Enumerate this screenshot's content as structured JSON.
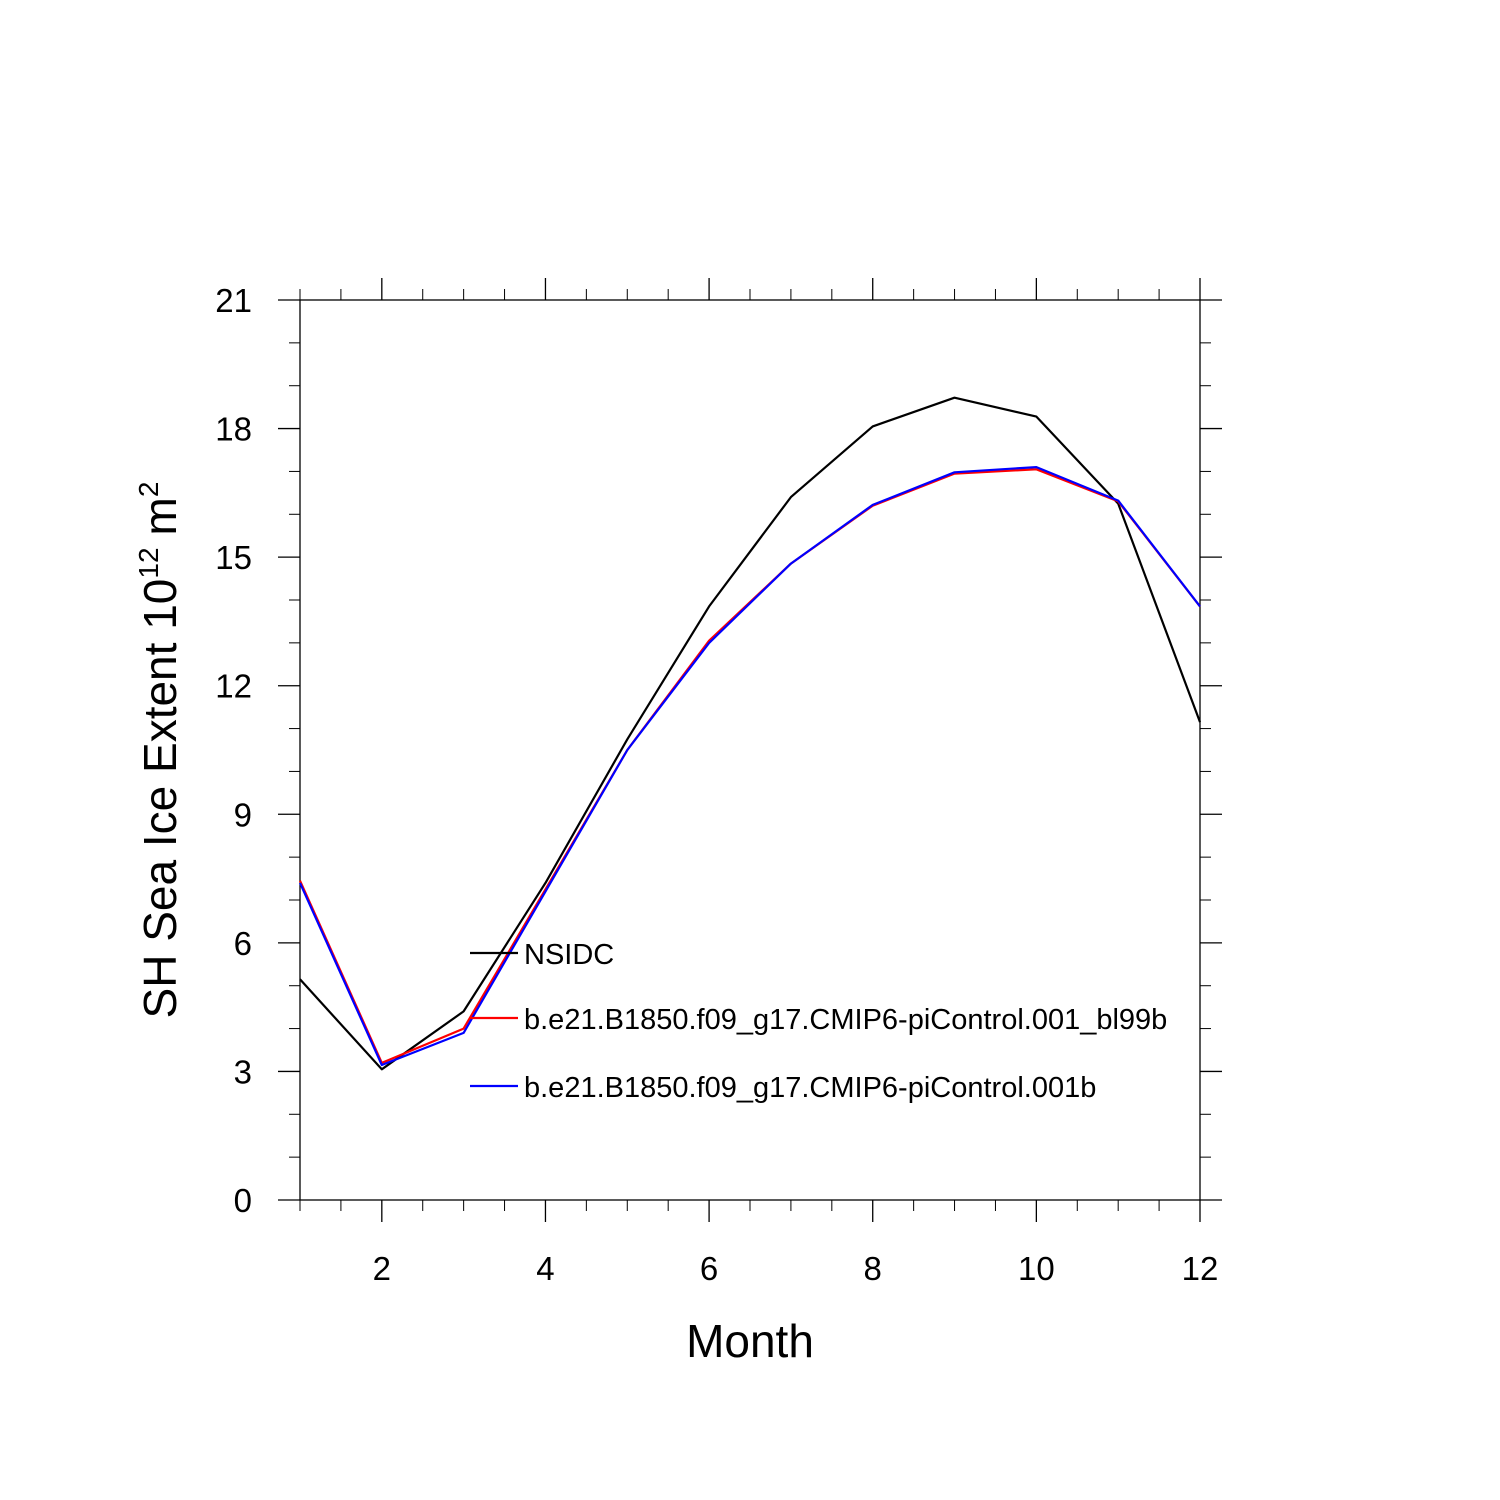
{
  "chart_data": {
    "type": "line",
    "title": "",
    "xlabel": "Month",
    "ylabel_parts": {
      "main": "SH Sea Ice Extent 10",
      "exp": "12",
      "unit": "m",
      "unit_exp": "2"
    },
    "xlim": [
      1,
      12
    ],
    "ylim": [
      0,
      21
    ],
    "x_major_ticks": [
      2,
      4,
      6,
      8,
      10,
      12
    ],
    "y_major_ticks": [
      0,
      3,
      6,
      9,
      12,
      15,
      18,
      21
    ],
    "grid": false,
    "legend_placement": "center-left inside plot",
    "x": [
      1,
      2,
      3,
      4,
      5,
      6,
      7,
      8,
      9,
      10,
      11,
      12
    ],
    "series": [
      {
        "name": "NSIDC",
        "color": "#000000",
        "values": [
          5.15,
          3.05,
          4.4,
          7.4,
          10.75,
          13.85,
          16.4,
          18.05,
          18.72,
          18.28,
          16.25,
          11.15
        ]
      },
      {
        "name": "b.e21.B1850.f09_g17.CMIP6-piControl.001_bl99b",
        "color": "#ff0000",
        "values": [
          7.45,
          3.2,
          4.0,
          7.25,
          10.5,
          13.05,
          14.85,
          16.2,
          16.95,
          17.05,
          16.3,
          13.85
        ]
      },
      {
        "name": "b.e21.B1850.f09_g17.CMIP6-piControl.001b",
        "color": "#0000ff",
        "values": [
          7.4,
          3.15,
          3.9,
          7.2,
          10.5,
          13.0,
          14.85,
          16.22,
          16.98,
          17.1,
          16.32,
          13.85
        ]
      }
    ]
  }
}
